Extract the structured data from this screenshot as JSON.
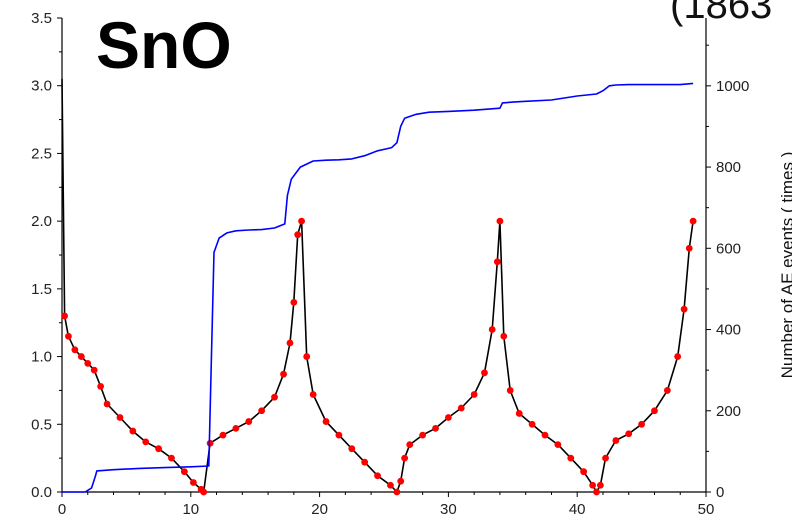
{
  "chart_data": {
    "type": "line",
    "title": "SnO",
    "title_cut": "(1863",
    "xlabel": "",
    "ylabel_left": "",
    "ylabel_right": "Number of AE events ( times )",
    "xlim": [
      0,
      50
    ],
    "ylim_left": [
      0,
      3.5
    ],
    "ylim_right": [
      0,
      1167
    ],
    "x_ticks": [
      0,
      10,
      20,
      30,
      40,
      50
    ],
    "y_left_ticks": [
      0.0,
      0.5,
      1.0,
      1.5,
      2.0,
      2.5,
      3.0,
      3.5
    ],
    "y_right_ticks": [
      0,
      200,
      400,
      600,
      800,
      1000
    ],
    "grid": false,
    "series": [
      {
        "axis": "left",
        "color": "#000000",
        "marker_color": "#ff0000",
        "x": [
          0.0,
          0.2,
          0.5,
          1.0,
          1.5,
          2.0,
          2.5,
          3.0,
          3.5,
          4.5,
          5.5,
          6.5,
          7.5,
          8.5,
          9.5,
          10.2,
          10.8,
          11.0,
          11.5,
          12.5,
          13.5,
          14.5,
          15.5,
          16.5,
          17.2,
          17.7,
          18.0,
          18.3,
          18.6,
          19.0,
          19.5,
          20.5,
          21.5,
          22.5,
          23.5,
          24.5,
          25.5,
          26.0,
          26.3,
          26.6,
          27.0,
          28.0,
          29.0,
          30.0,
          31.0,
          32.0,
          32.8,
          33.4,
          33.8,
          34.0,
          34.3,
          34.8,
          35.5,
          36.5,
          37.5,
          38.5,
          39.5,
          40.5,
          41.2,
          41.5,
          41.8,
          42.2,
          43.0,
          44.0,
          45.0,
          46.0,
          47.0,
          47.8,
          48.3,
          48.7,
          49.0
        ],
        "y": [
          3.05,
          1.3,
          1.15,
          1.05,
          1.0,
          0.95,
          0.9,
          0.78,
          0.65,
          0.55,
          0.45,
          0.37,
          0.32,
          0.25,
          0.15,
          0.07,
          0.02,
          0.0,
          0.36,
          0.42,
          0.47,
          0.52,
          0.6,
          0.7,
          0.87,
          1.1,
          1.4,
          1.9,
          2.0,
          1.0,
          0.72,
          0.52,
          0.42,
          0.32,
          0.22,
          0.12,
          0.05,
          0.0,
          0.08,
          0.25,
          0.35,
          0.42,
          0.47,
          0.55,
          0.62,
          0.72,
          0.88,
          1.2,
          1.7,
          2.0,
          1.15,
          0.75,
          0.58,
          0.5,
          0.42,
          0.35,
          0.25,
          0.15,
          0.05,
          0.0,
          0.05,
          0.25,
          0.38,
          0.43,
          0.5,
          0.6,
          0.75,
          1.0,
          1.35,
          1.8,
          2.0
        ]
      },
      {
        "axis": "right",
        "color": "#0000ff",
        "x": [
          0.0,
          1.8,
          2.3,
          2.6,
          2.7,
          4.0,
          6.0,
          8.0,
          10.0,
          11.4,
          11.6,
          11.8,
          12.2,
          12.8,
          13.5,
          14.5,
          15.5,
          16.5,
          17.3,
          17.5,
          17.8,
          18.5,
          19.5,
          20.5,
          21.5,
          22.5,
          23.5,
          24.5,
          25.6,
          26.0,
          26.3,
          26.6,
          27.5,
          28.5,
          30.0,
          32.0,
          34.0,
          34.2,
          35.0,
          36.0,
          38.0,
          40.0,
          41.5,
          42.0,
          42.5,
          43.0,
          44.0,
          46.0,
          48.0,
          49.0
        ],
        "y": [
          0,
          0,
          10,
          40,
          52,
          55,
          58,
          60,
          62,
          64,
          330,
          590,
          625,
          638,
          643,
          645,
          646,
          650,
          660,
          730,
          770,
          800,
          815,
          817,
          818,
          820,
          828,
          840,
          848,
          860,
          900,
          920,
          930,
          935,
          937,
          940,
          945,
          958,
          960,
          962,
          965,
          975,
          980,
          988,
          1000,
          1002,
          1003,
          1003,
          1003,
          1006
        ]
      }
    ]
  }
}
